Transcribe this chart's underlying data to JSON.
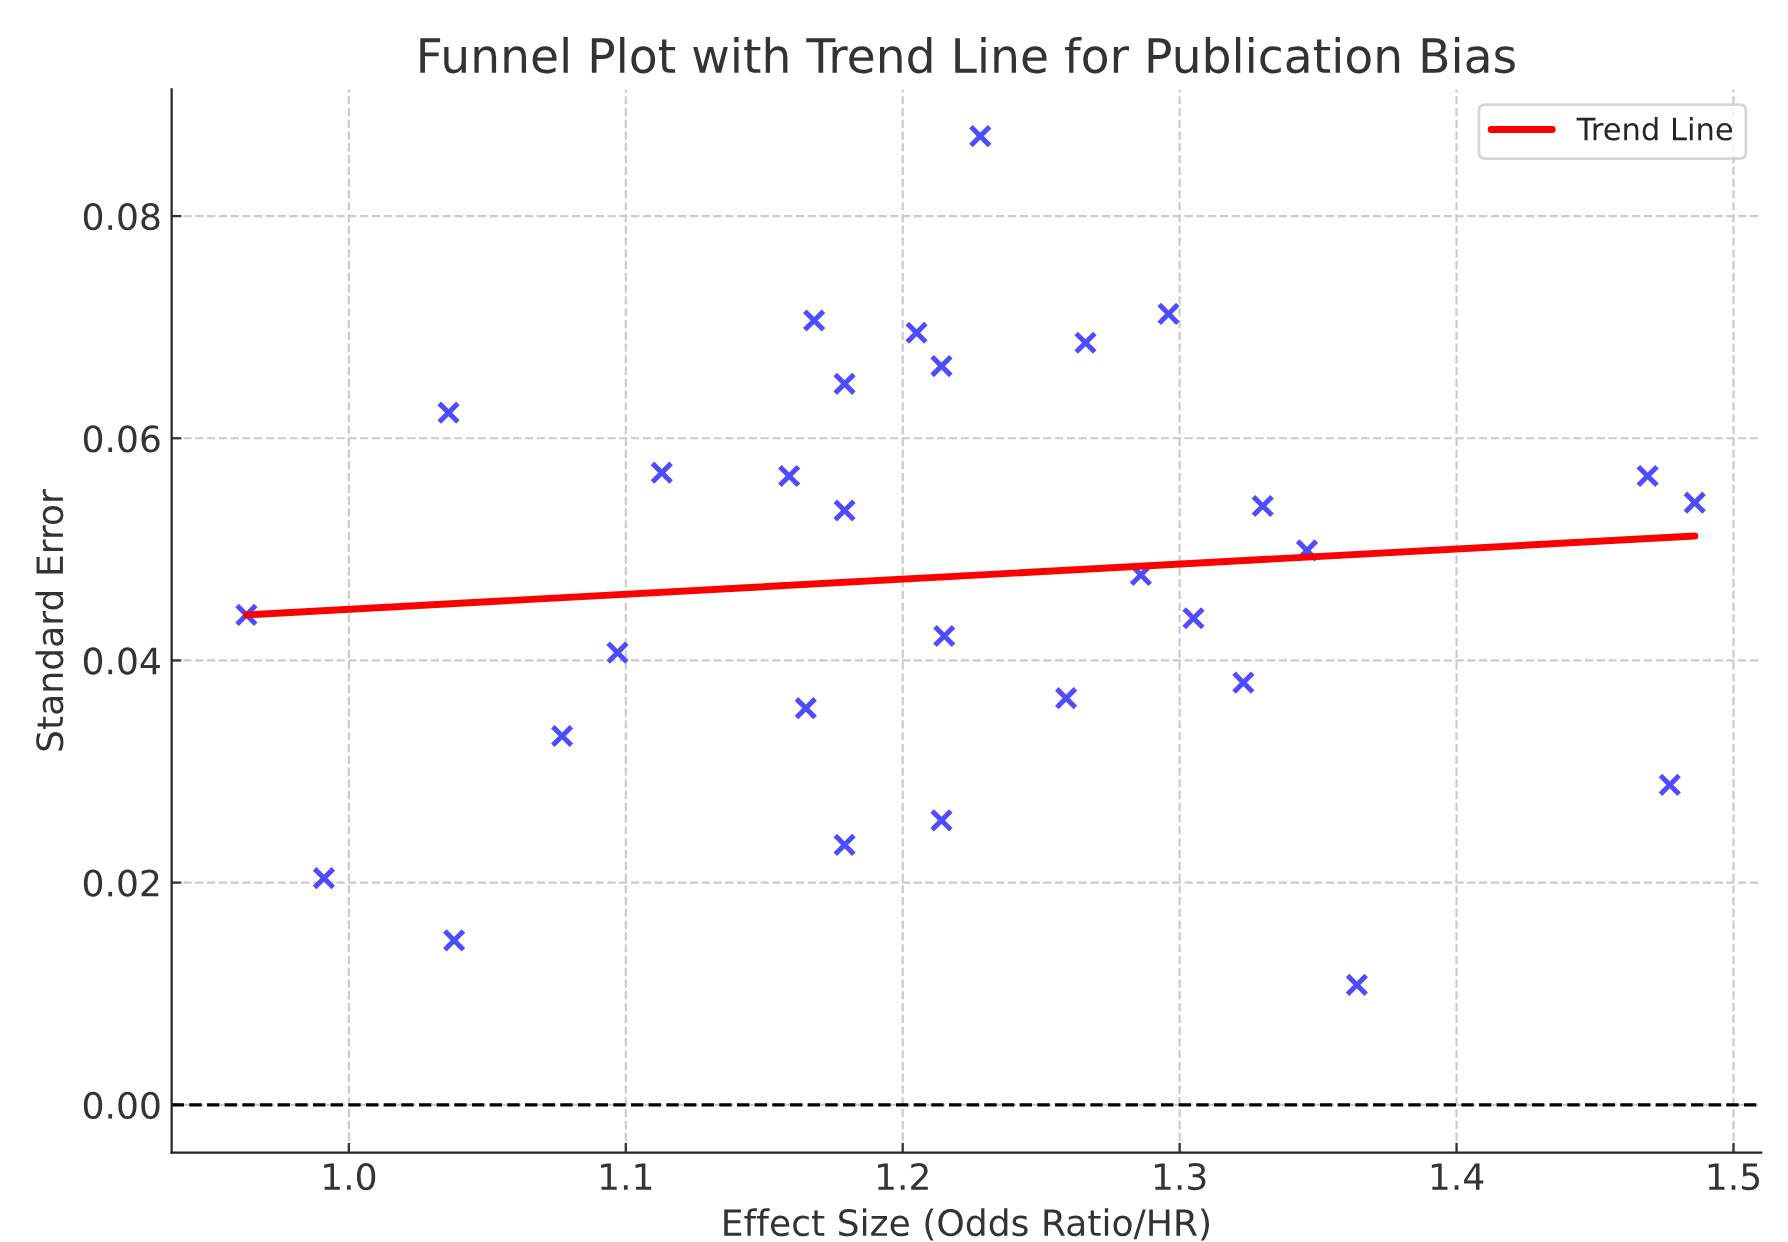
{
  "chart_data": {
    "type": "scatter",
    "title": "Funnel Plot with Trend Line for Publication Bias",
    "xlabel": "Effect Size (Odds Ratio/HR)",
    "ylabel": "Standard Error",
    "series": [
      {
        "color": "#4d4dff",
        "marker": "cross",
        "x": [
          0.963,
          0.991,
          1.036,
          1.038,
          1.077,
          1.097,
          1.113,
          1.159,
          1.165,
          1.168,
          1.179,
          1.179,
          1.179,
          1.205,
          1.214,
          1.215,
          1.214,
          1.228,
          1.259,
          1.266,
          1.286,
          1.296,
          1.305,
          1.323,
          1.33,
          1.346,
          1.364,
          1.469,
          1.477,
          1.486
        ],
        "values": [
          0.0441,
          0.0204,
          0.0623,
          0.0148,
          0.0332,
          0.0407,
          0.0569,
          0.0566,
          0.0357,
          0.0706,
          0.0649,
          0.0535,
          0.0234,
          0.0695,
          0.0665,
          0.0422,
          0.0256,
          0.0872,
          0.0366,
          0.0686,
          0.0477,
          0.0712,
          0.0438,
          0.038,
          0.0539,
          0.0499,
          0.0108,
          0.0566,
          0.0288,
          0.0542
        ]
      },
      {
        "type": "line",
        "name": "Trend Line",
        "color": "#ff0000",
        "line_style": "solid",
        "x": [
          0.963,
          1.486
        ],
        "values": [
          0.0441,
          0.0512
        ]
      }
    ],
    "ref_lines": [
      {
        "axis": "y",
        "value": 0,
        "color": "#000000",
        "line_style": "dashed"
      }
    ],
    "xlim": [
      0.936,
      1.51
    ],
    "ylim": [
      -0.0043,
      0.0914
    ],
    "xticks": [
      {
        "value": 1.0,
        "label": "1.0"
      },
      1.1,
      1.2,
      1.3,
      1.4,
      1.5
    ],
    "yticks": [
      {
        "value": 0,
        "label": "0.00"
      },
      {
        "value": 0.02,
        "label": "0.02"
      },
      {
        "value": 0.04,
        "label": "0.04"
      },
      {
        "value": 0.06,
        "label": "0.06"
      },
      {
        "value": 0.08,
        "label": "0.08"
      }
    ],
    "grid": true,
    "legend": "top right"
  }
}
